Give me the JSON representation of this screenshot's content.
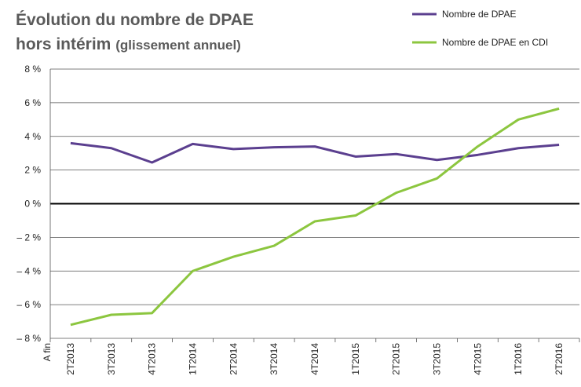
{
  "chart_data": {
    "type": "line",
    "title": [
      "Évolution du nombre de DPAE",
      "hors intérim",
      "(glissement annuel)"
    ],
    "x_label": "A fin",
    "categories": [
      "2T2013",
      "3T2013",
      "4T2013",
      "1T2014",
      "2T2014",
      "3T2014",
      "4T2014",
      "1T2015",
      "2T2015",
      "3T2015",
      "4T2015",
      "1T2016",
      "2T2016"
    ],
    "series": [
      {
        "name": "Nombre de DPAE",
        "color": "#5b3f8f",
        "values": [
          3.6,
          3.3,
          2.45,
          3.55,
          3.25,
          3.35,
          3.4,
          2.8,
          2.95,
          2.6,
          2.9,
          3.3,
          3.5
        ]
      },
      {
        "name": "Nombre de DPAE en CDI",
        "color": "#8cc63f",
        "values": [
          -7.2,
          -6.6,
          -6.5,
          -4.0,
          -3.15,
          -2.5,
          -1.05,
          -0.7,
          0.65,
          1.5,
          3.4,
          5.0,
          5.65
        ]
      }
    ],
    "ylim": [
      -8,
      8
    ],
    "yticks": [
      {
        "value": -8,
        "label": "– 8 %"
      },
      {
        "value": -6,
        "label": "– 6 %"
      },
      {
        "value": -4,
        "label": "– 4 %"
      },
      {
        "value": -2,
        "label": "– 2 %"
      },
      {
        "value": 0,
        "label": "0 %"
      },
      {
        "value": 2,
        "label": "2 %"
      },
      {
        "value": 4,
        "label": "4 %"
      },
      {
        "value": 6,
        "label": "6 %"
      },
      {
        "value": 8,
        "label": "8 %"
      }
    ],
    "grid": true,
    "legend": "top-right"
  }
}
